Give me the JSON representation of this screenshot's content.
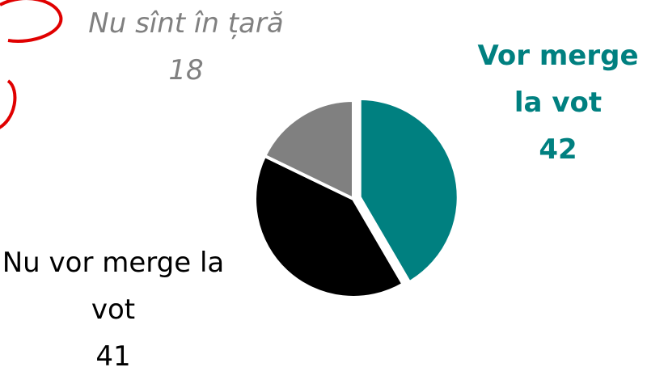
{
  "chart_data": {
    "type": "pie",
    "categories": [
      "Vor merge la vot",
      "Nu vor merge la vot",
      "Nu sînt în țară"
    ],
    "values": [
      42,
      41,
      18
    ],
    "colors": [
      "#008080",
      "#000000",
      "#808080"
    ]
  }
}
